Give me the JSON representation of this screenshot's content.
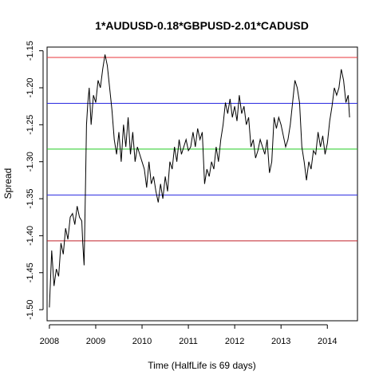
{
  "chart_data": {
    "type": "line",
    "title": "1*AUDUSD-0.18*GBPUSD-2.01*CADUSD",
    "xlabel": "Time  (HalfLife is 69 days)",
    "ylabel": "Spread",
    "xlim": [
      2007.95,
      2014.65
    ],
    "ylim": [
      -1.515,
      -1.145
    ],
    "x_ticks": [
      {
        "value": 2008,
        "label": "2008"
      },
      {
        "value": 2009,
        "label": "2009"
      },
      {
        "value": 2010,
        "label": "2010"
      },
      {
        "value": 2011,
        "label": "2011"
      },
      {
        "value": 2012,
        "label": "2012"
      },
      {
        "value": 2013,
        "label": "2013"
      },
      {
        "value": 2014,
        "label": "2014"
      }
    ],
    "y_ticks": [
      {
        "value": -1.15,
        "label": "-1.15"
      },
      {
        "value": -1.2,
        "label": "-1.20"
      },
      {
        "value": -1.25,
        "label": "-1.25"
      },
      {
        "value": -1.3,
        "label": "-1.30"
      },
      {
        "value": -1.35,
        "label": "-1.35"
      },
      {
        "value": -1.4,
        "label": "-1.40"
      },
      {
        "value": -1.45,
        "label": "-1.45"
      },
      {
        "value": -1.5,
        "label": "-1.50"
      }
    ],
    "hlines": [
      {
        "name": "upper-2sd",
        "y": -1.159,
        "color": "#e8353b"
      },
      {
        "name": "upper-1sd",
        "y": -1.221,
        "color": "#2a2ae0"
      },
      {
        "name": "mean",
        "y": -1.283,
        "color": "#22cc22"
      },
      {
        "name": "lower-1sd",
        "y": -1.345,
        "color": "#2a2ae0"
      },
      {
        "name": "lower-2sd",
        "y": -1.407,
        "color": "#c0212a"
      }
    ],
    "series": [
      {
        "color": "#000000",
        "x": [
          2008.0,
          2008.05,
          2008.1,
          2008.15,
          2008.2,
          2008.25,
          2008.3,
          2008.35,
          2008.4,
          2008.45,
          2008.5,
          2008.55,
          2008.6,
          2008.65,
          2008.7,
          2008.72,
          2008.75,
          2008.78,
          2008.8,
          2008.83,
          2008.86,
          2008.9,
          2008.95,
          2009.0,
          2009.05,
          2009.1,
          2009.15,
          2009.2,
          2009.25,
          2009.3,
          2009.35,
          2009.4,
          2009.45,
          2009.5,
          2009.55,
          2009.6,
          2009.65,
          2009.7,
          2009.75,
          2009.8,
          2009.85,
          2009.9,
          2009.95,
          2010.0,
          2010.05,
          2010.1,
          2010.15,
          2010.2,
          2010.25,
          2010.3,
          2010.35,
          2010.4,
          2010.45,
          2010.5,
          2010.55,
          2010.6,
          2010.65,
          2010.7,
          2010.75,
          2010.8,
          2010.85,
          2010.9,
          2010.95,
          2011.0,
          2011.05,
          2011.1,
          2011.15,
          2011.2,
          2011.25,
          2011.3,
          2011.35,
          2011.4,
          2011.45,
          2011.5,
          2011.55,
          2011.6,
          2011.65,
          2011.7,
          2011.75,
          2011.8,
          2011.85,
          2011.9,
          2011.95,
          2012.0,
          2012.05,
          2012.1,
          2012.15,
          2012.2,
          2012.25,
          2012.3,
          2012.35,
          2012.4,
          2012.45,
          2012.5,
          2012.55,
          2012.6,
          2012.65,
          2012.7,
          2012.75,
          2012.8,
          2012.85,
          2012.9,
          2012.95,
          2013.0,
          2013.05,
          2013.1,
          2013.15,
          2013.2,
          2013.25,
          2013.3,
          2013.35,
          2013.4,
          2013.45,
          2013.5,
          2013.55,
          2013.6,
          2013.65,
          2013.7,
          2013.75,
          2013.8,
          2013.85,
          2013.9,
          2013.95,
          2014.0,
          2014.05,
          2014.1,
          2014.15,
          2014.2,
          2014.25,
          2014.3,
          2014.35,
          2014.4,
          2014.45,
          2014.48
        ],
        "y": [
          -1.497,
          -1.42,
          -1.468,
          -1.445,
          -1.455,
          -1.41,
          -1.425,
          -1.39,
          -1.405,
          -1.375,
          -1.37,
          -1.385,
          -1.36,
          -1.375,
          -1.38,
          -1.41,
          -1.44,
          -1.33,
          -1.25,
          -1.22,
          -1.2,
          -1.25,
          -1.21,
          -1.22,
          -1.19,
          -1.2,
          -1.175,
          -1.155,
          -1.17,
          -1.2,
          -1.23,
          -1.27,
          -1.29,
          -1.26,
          -1.3,
          -1.25,
          -1.28,
          -1.24,
          -1.29,
          -1.26,
          -1.3,
          -1.28,
          -1.29,
          -1.3,
          -1.31,
          -1.335,
          -1.3,
          -1.33,
          -1.32,
          -1.34,
          -1.355,
          -1.33,
          -1.35,
          -1.32,
          -1.34,
          -1.3,
          -1.31,
          -1.28,
          -1.3,
          -1.27,
          -1.29,
          -1.28,
          -1.27,
          -1.285,
          -1.28,
          -1.26,
          -1.28,
          -1.255,
          -1.27,
          -1.26,
          -1.33,
          -1.31,
          -1.32,
          -1.3,
          -1.31,
          -1.28,
          -1.3,
          -1.27,
          -1.25,
          -1.22,
          -1.235,
          -1.215,
          -1.24,
          -1.225,
          -1.245,
          -1.21,
          -1.235,
          -1.225,
          -1.25,
          -1.24,
          -1.28,
          -1.27,
          -1.295,
          -1.285,
          -1.27,
          -1.28,
          -1.29,
          -1.27,
          -1.315,
          -1.3,
          -1.24,
          -1.255,
          -1.24,
          -1.25,
          -1.265,
          -1.28,
          -1.27,
          -1.25,
          -1.22,
          -1.19,
          -1.2,
          -1.22,
          -1.28,
          -1.3,
          -1.325,
          -1.3,
          -1.31,
          -1.285,
          -1.29,
          -1.26,
          -1.28,
          -1.265,
          -1.29,
          -1.275,
          -1.245,
          -1.225,
          -1.2,
          -1.21,
          -1.2,
          -1.175,
          -1.19,
          -1.22,
          -1.21,
          -1.24
        ]
      }
    ]
  }
}
